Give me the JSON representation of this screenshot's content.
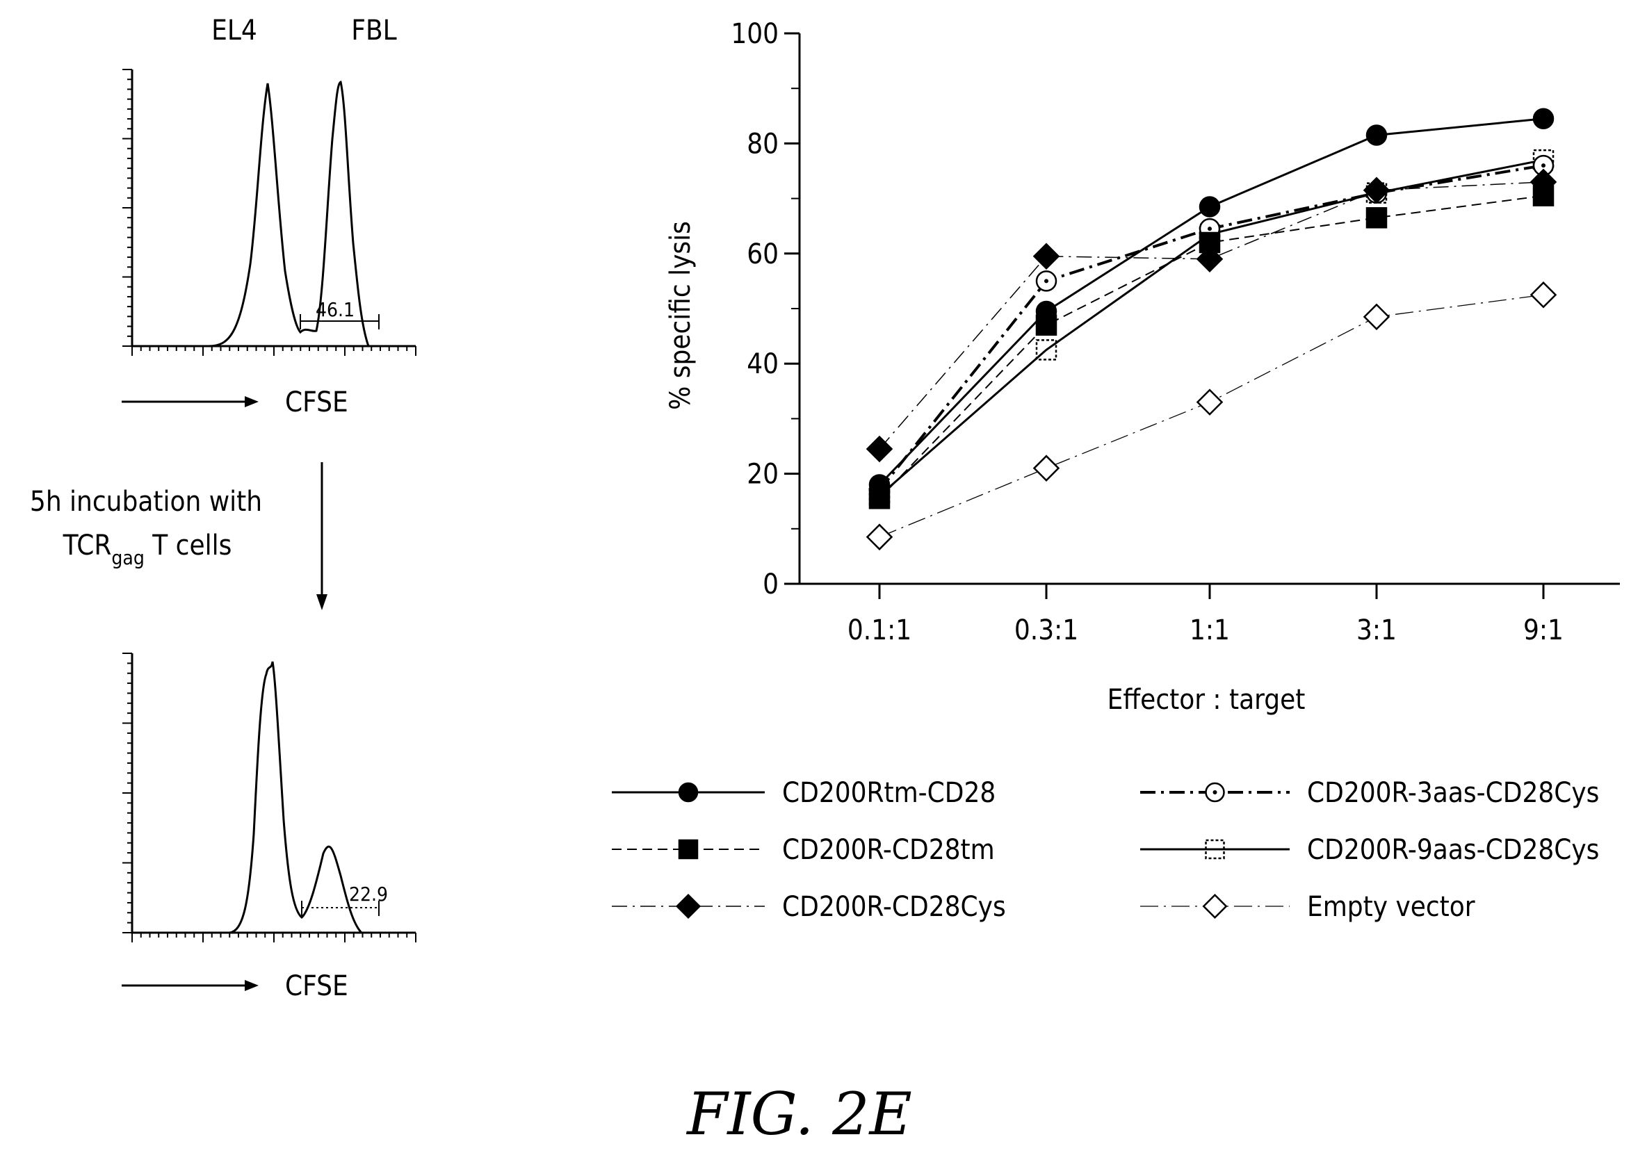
{
  "figure_label": "FIG. 2E",
  "flow": {
    "top_labels": [
      "EL4",
      "FBL"
    ],
    "axis_label": "CFSE",
    "top_gate_value": "46.1",
    "bottom_gate_value": "22.9",
    "incubation_line1": "5h incubation with",
    "incubation_tcr": "TCR",
    "incubation_sub": "gag",
    "incubation_rest": "T cells"
  },
  "chart_data": {
    "type": "line",
    "xlabel": "Effector : target",
    "ylabel": "% specific lysis",
    "categories": [
      "0.1:1",
      "0.3:1",
      "1:1",
      "3:1",
      "9:1"
    ],
    "ylim": [
      0,
      100
    ],
    "yticks": [
      "0",
      "20",
      "40",
      "60",
      "80",
      "100"
    ],
    "grid": false,
    "legend_position": "bottom",
    "series": [
      {
        "name": "CD200Rtm-CD28",
        "marker": "filled-circle",
        "dash": "solid",
        "values": [
          18,
          49.5,
          68.5,
          81.5,
          84.5
        ]
      },
      {
        "name": "CD200R-CD28tm",
        "marker": "filled-square",
        "dash": "dashed",
        "values": [
          15.5,
          47,
          62,
          66.5,
          70.5
        ]
      },
      {
        "name": "CD200R-CD28Cys",
        "marker": "filled-diamond",
        "dash": "dash-dot-thin",
        "values": [
          24.5,
          59.5,
          59,
          71.5,
          73
        ]
      },
      {
        "name": "CD200R-3aas-CD28Cys",
        "marker": "open-circle",
        "dash": "dash-dot",
        "values": [
          17,
          55,
          64.5,
          71,
          76
        ]
      },
      {
        "name": "CD200R-9aas-CD28Cys",
        "marker": "open-square",
        "dash": "solid",
        "values": [
          16,
          42.5,
          63.5,
          71,
          77
        ]
      },
      {
        "name": "Empty vector",
        "marker": "open-diamond",
        "dash": "thin-dash-dot",
        "values": [
          8.5,
          21,
          33,
          48.5,
          52.5
        ]
      }
    ]
  }
}
